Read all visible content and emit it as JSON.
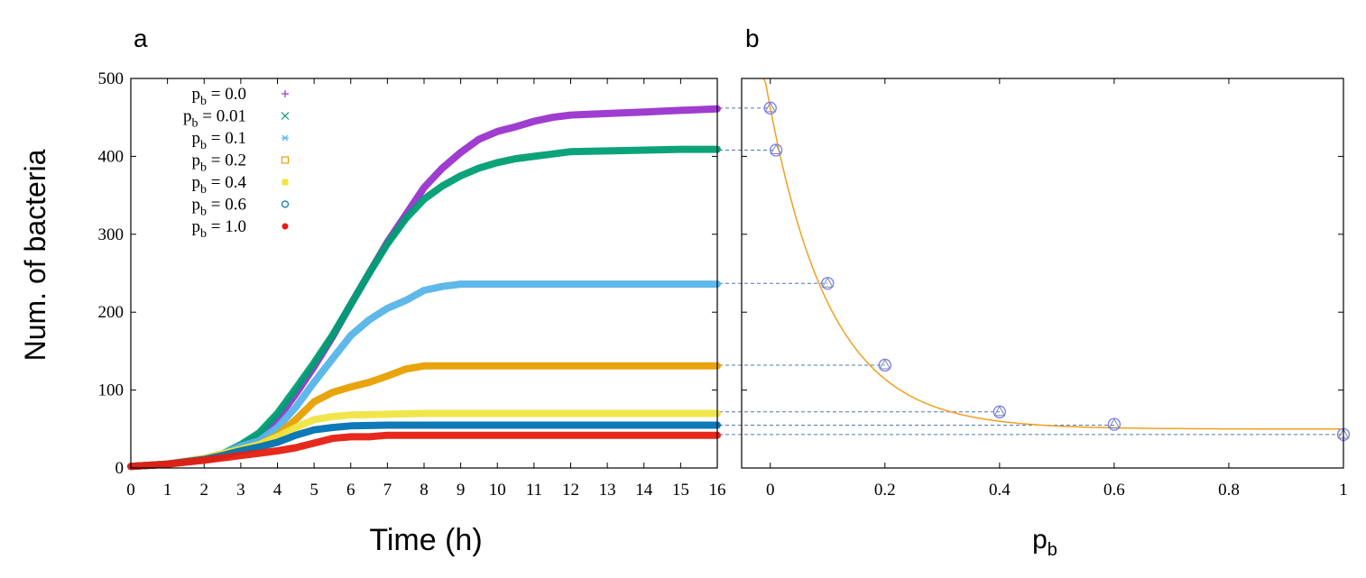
{
  "panels": {
    "a_label": "a",
    "b_label": "b"
  },
  "chart_data": [
    {
      "type": "line",
      "panel": "a",
      "xlabel": "Time (h)",
      "ylabel": "Num. of bacteria",
      "xlim": [
        0,
        16
      ],
      "ylim": [
        0,
        500
      ],
      "xticks": [
        0,
        1,
        2,
        3,
        4,
        5,
        6,
        7,
        8,
        9,
        10,
        11,
        12,
        13,
        14,
        15,
        16
      ],
      "yticks": [
        0,
        100,
        200,
        300,
        400,
        500
      ],
      "legend": [
        {
          "key": "p_b0.0",
          "label": "p",
          "sub": "b",
          "rest": " = 0.0",
          "marker": "+",
          "color": "#9933cc"
        },
        {
          "key": "p_b0.01",
          "label": "p",
          "sub": "b",
          "rest": " = 0.01",
          "marker": "x",
          "color": "#009e73"
        },
        {
          "key": "p_b0.1",
          "label": "p",
          "sub": "b",
          "rest": " = 0.1",
          "marker": "*",
          "color": "#56b4e9"
        },
        {
          "key": "p_b0.2",
          "label": "p",
          "sub": "b",
          "rest": " = 0.2",
          "marker": "square-open",
          "color": "#e69f00"
        },
        {
          "key": "p_b0.4",
          "label": "p",
          "sub": "b",
          "rest": " = 0.4",
          "marker": "square-filled",
          "color": "#f0e442"
        },
        {
          "key": "p_b0.6",
          "label": "p",
          "sub": "b",
          "rest": " = 0.6",
          "marker": "circle-open",
          "color": "#0072b2"
        },
        {
          "key": "p_b1.0",
          "label": "p",
          "sub": "b",
          "rest": " = 1.0",
          "marker": "circle-filled",
          "color": "#e51e10"
        }
      ],
      "series": [
        {
          "name": "p_b = 0.0",
          "color": "#9933cc",
          "x": [
            0,
            1,
            2,
            2.5,
            3,
            3.5,
            4,
            4.5,
            5,
            5.5,
            6,
            6.5,
            7,
            7.5,
            8,
            8.5,
            9,
            9.5,
            10,
            10.5,
            11,
            11.5,
            12,
            13,
            14,
            15,
            16
          ],
          "y": [
            2,
            5,
            12,
            18,
            28,
            40,
            63,
            95,
            130,
            168,
            210,
            250,
            290,
            325,
            360,
            385,
            405,
            422,
            432,
            438,
            445,
            450,
            453,
            455,
            457,
            459,
            461
          ]
        },
        {
          "name": "p_b = 0.01",
          "color": "#009e73",
          "x": [
            0,
            1,
            2,
            2.5,
            3,
            3.5,
            4,
            4.5,
            5,
            5.5,
            6,
            6.5,
            7,
            7.5,
            8,
            8.5,
            9,
            9.5,
            10,
            10.5,
            11,
            11.5,
            12,
            13,
            14,
            15,
            16
          ],
          "y": [
            2,
            5,
            12,
            18,
            30,
            45,
            70,
            102,
            135,
            170,
            210,
            250,
            288,
            320,
            345,
            362,
            375,
            385,
            392,
            397,
            400,
            403,
            406,
            407,
            408,
            409,
            409
          ]
        },
        {
          "name": "p_b = 0.1",
          "color": "#56b4e9",
          "x": [
            0,
            1,
            2,
            2.5,
            3,
            3.5,
            4,
            4.5,
            5,
            5.5,
            6,
            6.5,
            7,
            7.5,
            8,
            8.5,
            9,
            10,
            11,
            12,
            13,
            14,
            15,
            16
          ],
          "y": [
            2,
            5,
            12,
            18,
            28,
            35,
            52,
            78,
            110,
            140,
            170,
            190,
            205,
            215,
            228,
            233,
            236,
            236,
            236,
            236,
            236,
            236,
            236,
            236
          ]
        },
        {
          "name": "p_b = 0.2",
          "color": "#e69f00",
          "x": [
            0,
            1,
            2,
            2.5,
            3,
            3.5,
            4,
            4.5,
            5,
            5.5,
            6,
            6.5,
            7,
            7.5,
            8,
            9,
            10,
            11,
            12,
            13,
            14,
            15,
            16
          ],
          "y": [
            2,
            5,
            12,
            18,
            24,
            30,
            42,
            62,
            85,
            97,
            104,
            110,
            118,
            127,
            131,
            131,
            131,
            131,
            131,
            131,
            131,
            131,
            131
          ]
        },
        {
          "name": "p_b = 0.4",
          "color": "#f0e442",
          "x": [
            0,
            1,
            2,
            2.5,
            3,
            3.5,
            4,
            4.5,
            5,
            5.5,
            6,
            7,
            8,
            9,
            10,
            11,
            12,
            13,
            14,
            15,
            16
          ],
          "y": [
            2,
            5,
            12,
            18,
            24,
            30,
            40,
            52,
            62,
            66,
            68,
            69,
            70,
            70,
            70,
            70,
            70,
            70,
            70,
            70,
            70
          ]
        },
        {
          "name": "p_b = 0.6",
          "color": "#0072b2",
          "x": [
            0,
            1,
            2,
            2.5,
            3,
            3.5,
            4,
            4.5,
            5,
            5.5,
            6,
            7,
            8,
            9,
            10,
            11,
            12,
            13,
            14,
            15,
            16
          ],
          "y": [
            2,
            5,
            11,
            16,
            22,
            27,
            33,
            42,
            49,
            52,
            54,
            55,
            55,
            55,
            55,
            55,
            55,
            55,
            55,
            55,
            55
          ]
        },
        {
          "name": "p_b = 1.0",
          "color": "#e51e10",
          "x": [
            0,
            1,
            2,
            2.5,
            3,
            3.5,
            4,
            4.5,
            5,
            5.5,
            6,
            6.5,
            7,
            8,
            9,
            10,
            11,
            12,
            13,
            14,
            15,
            16
          ],
          "y": [
            2,
            5,
            10,
            13,
            16,
            19,
            22,
            26,
            32,
            38,
            40,
            40,
            42,
            42,
            42,
            42,
            42,
            42,
            42,
            42,
            42,
            42
          ]
        }
      ]
    },
    {
      "type": "scatter",
      "panel": "b",
      "xlabel": "p",
      "xlabel_sub": "b",
      "ylabel": "",
      "xlim": [
        -0.05,
        1
      ],
      "ylim": [
        0,
        500
      ],
      "xticks": [
        0,
        0.2,
        0.4,
        0.6,
        0.8,
        1
      ],
      "xtick_labels": [
        "0",
        "0.2",
        "0.4",
        "0.6",
        "0.8",
        "1"
      ],
      "points": {
        "x": [
          0,
          0.01,
          0.1,
          0.2,
          0.4,
          0.6,
          1.0
        ],
        "y": [
          462,
          408,
          237,
          132,
          72,
          56,
          43
        ]
      },
      "fit": {
        "color": "#f0a020",
        "a": 412,
        "k": 9.3,
        "c": 50
      },
      "reference_lines": [
        462,
        408,
        237,
        132,
        72,
        55,
        43
      ]
    }
  ]
}
